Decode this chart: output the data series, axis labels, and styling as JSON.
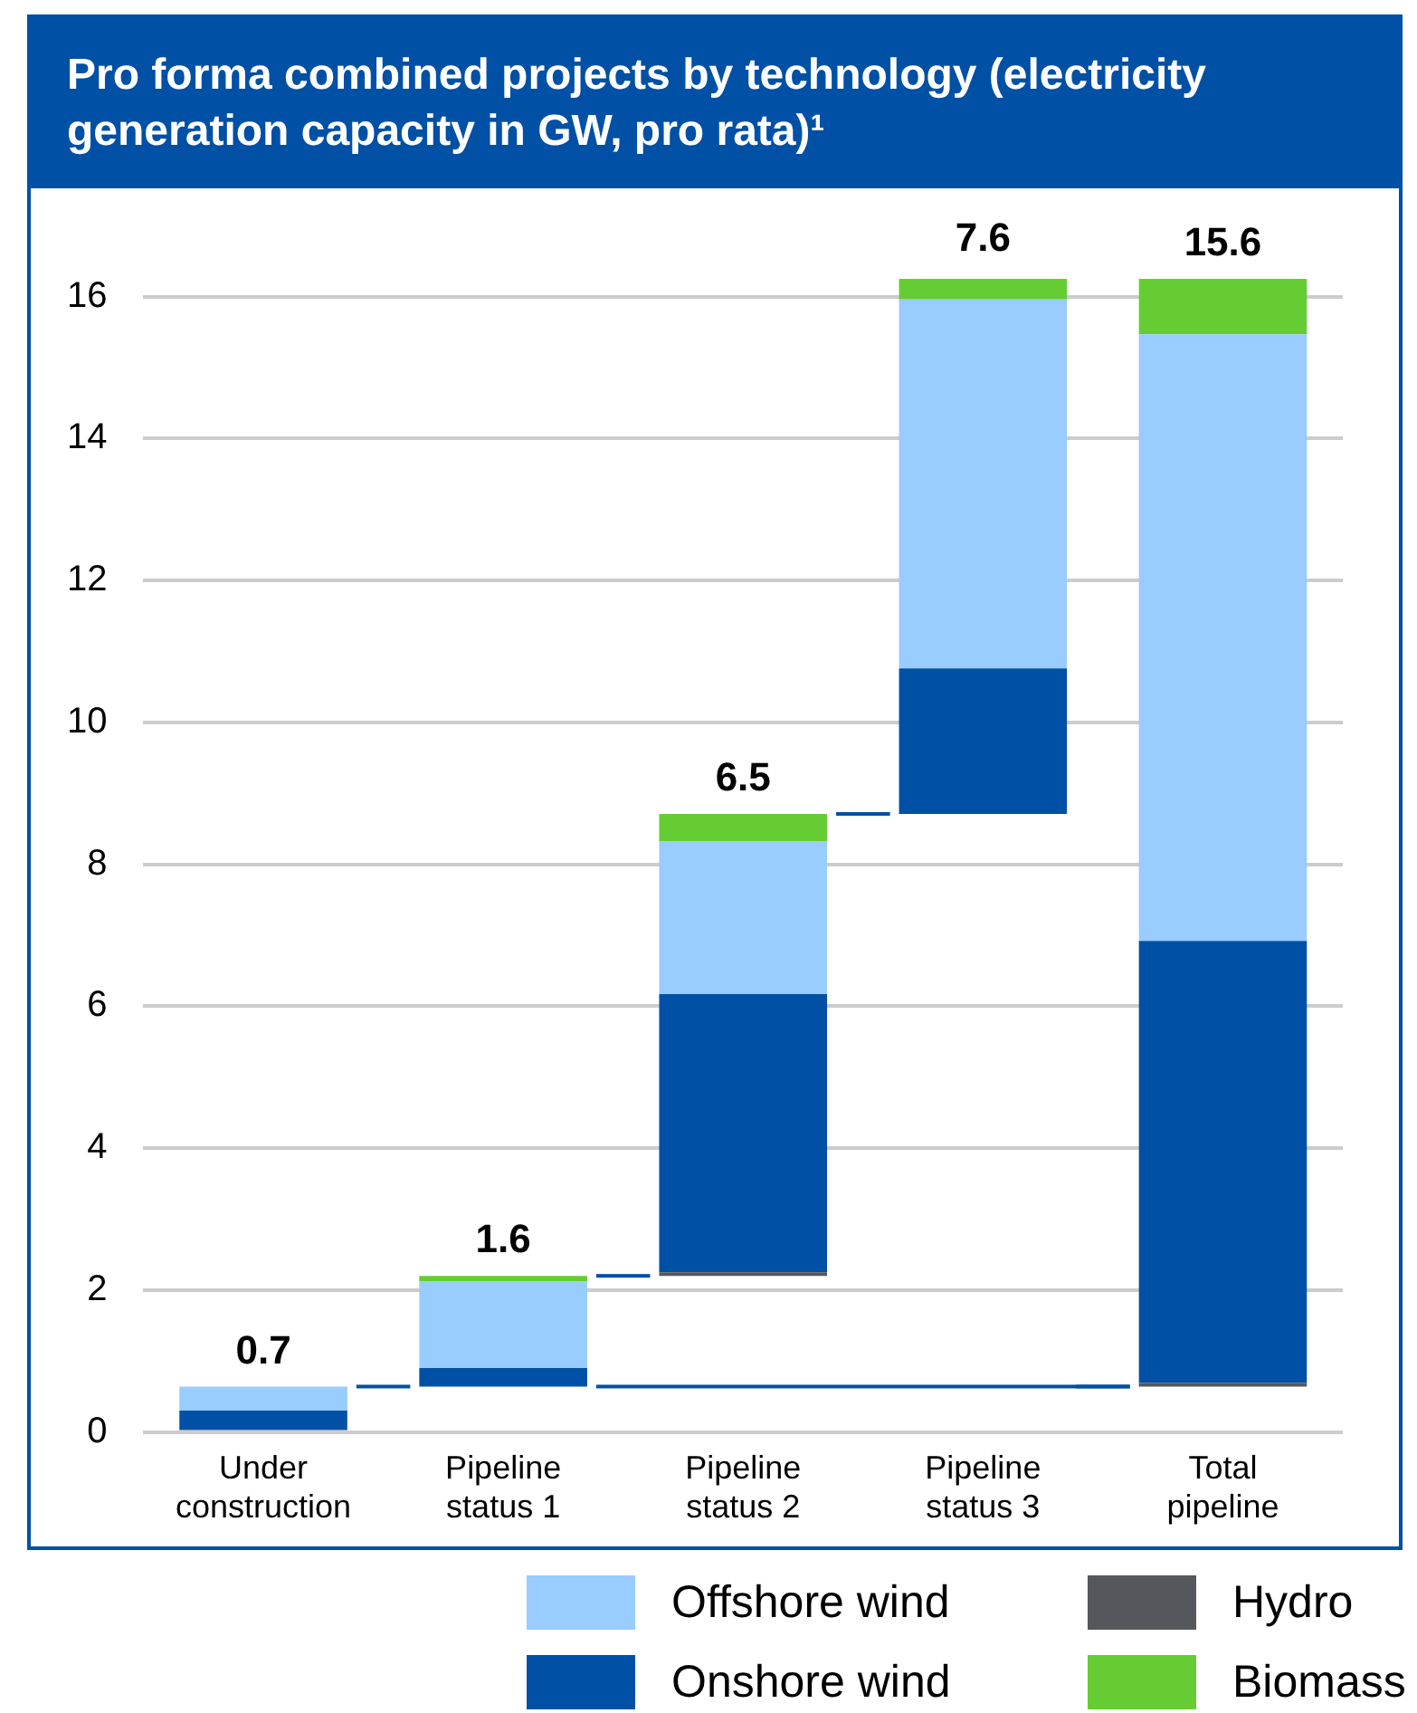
{
  "chart_data": {
    "type": "bar",
    "title": "Pro forma combined projects by technology (electricity generation capacity in GW, pro rata)¹",
    "categories": [
      "Under construction",
      "Pipeline status 1",
      "Pipeline status 2",
      "Pipeline status 3",
      "Total pipeline"
    ],
    "series": [
      {
        "name": "Hydro",
        "color": "#54575c",
        "base": [
          null,
          null,
          2.2,
          null,
          0.64
        ],
        "values": [
          null,
          null,
          0.05,
          null,
          0.05
        ]
      },
      {
        "name": "Onshore wind",
        "color": "#0050a5",
        "base": [
          0,
          0.64,
          2.25,
          8.71,
          0.69
        ],
        "values": [
          0.3,
          0.26,
          3.92,
          2.05,
          6.23
        ]
      },
      {
        "name": "Offshore wind",
        "color": "#99ccff",
        "base": [
          0.3,
          0.9,
          6.17,
          10.76,
          6.92
        ],
        "values": [
          0.34,
          1.22,
          2.15,
          5.2,
          8.55
        ]
      },
      {
        "name": "Biomass",
        "color": "#66cc33",
        "base": [
          null,
          2.12,
          8.32,
          15.96,
          15.47
        ],
        "values": [
          null,
          0.08,
          0.39,
          0.35,
          0.78
        ]
      }
    ],
    "totals": [
      "0.7",
      "1.6",
      "6.5",
      "7.6",
      "15.6"
    ],
    "stacked": true,
    "ylim": [
      0,
      16.25
    ],
    "yticks": [
      0,
      2,
      4,
      6,
      8,
      10,
      12,
      14,
      16
    ],
    "grid": "y",
    "legend": "bottom"
  }
}
